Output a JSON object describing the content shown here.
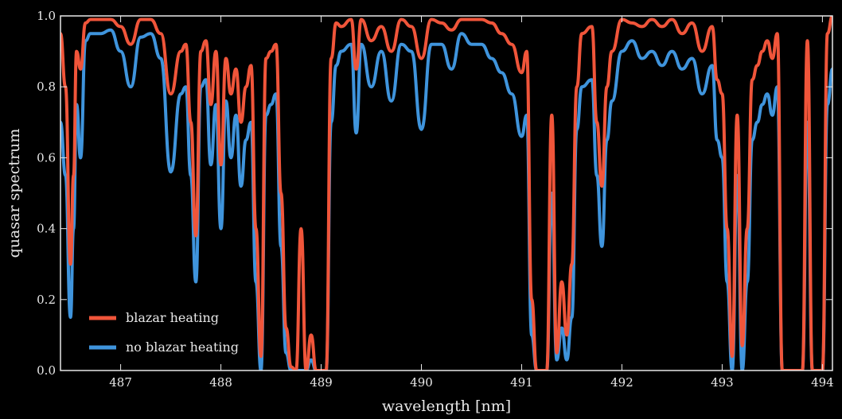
{
  "chart_data": {
    "type": "line",
    "xlabel": "wavelength [nm]",
    "ylabel": "quasar spectrum",
    "xlim": [
      486.4,
      494.1
    ],
    "ylim": [
      0.0,
      1.0
    ],
    "x_ticks": [
      "487",
      "488",
      "489",
      "490",
      "491",
      "492",
      "493",
      "494"
    ],
    "y_ticks": [
      "0.0",
      "0.2",
      "0.4",
      "0.6",
      "0.8",
      "1.0"
    ],
    "grid": false,
    "legend_position": "bottom-left",
    "colors": {
      "background": "#000000",
      "axes": "#e8e8e8",
      "blazar": "#f0553a",
      "no_blazar": "#3f94dc"
    },
    "series": [
      {
        "name": "blazar heating",
        "x": [
          486.4,
          486.45,
          486.5,
          486.53,
          486.56,
          486.6,
          486.65,
          486.7,
          486.8,
          486.9,
          487.0,
          487.1,
          487.2,
          487.3,
          487.4,
          487.5,
          487.6,
          487.65,
          487.7,
          487.75,
          487.8,
          487.85,
          487.9,
          487.95,
          488.0,
          488.05,
          488.1,
          488.15,
          488.2,
          488.25,
          488.3,
          488.35,
          488.4,
          488.45,
          488.5,
          488.55,
          488.6,
          488.65,
          488.7,
          488.75,
          488.8,
          488.85,
          488.9,
          488.95,
          489.0,
          489.05,
          489.1,
          489.15,
          489.2,
          489.3,
          489.35,
          489.4,
          489.5,
          489.6,
          489.7,
          489.8,
          489.9,
          490.0,
          490.1,
          490.2,
          490.3,
          490.4,
          490.5,
          490.6,
          490.7,
          490.8,
          490.9,
          491.0,
          491.05,
          491.1,
          491.15,
          491.2,
          491.25,
          491.3,
          491.35,
          491.4,
          491.45,
          491.5,
          491.55,
          491.6,
          491.7,
          491.75,
          491.8,
          491.85,
          491.9,
          492.0,
          492.1,
          492.2,
          492.3,
          492.4,
          492.5,
          492.6,
          492.7,
          492.8,
          492.9,
          492.95,
          493.0,
          493.05,
          493.1,
          493.15,
          493.2,
          493.25,
          493.3,
          493.35,
          493.4,
          493.45,
          493.5,
          493.55,
          493.6,
          493.65,
          493.7,
          493.75,
          493.8,
          493.85,
          493.9,
          493.95,
          494.0,
          494.05,
          494.1
        ],
        "values": [
          0.95,
          0.8,
          0.3,
          0.55,
          0.9,
          0.85,
          0.98,
          0.99,
          0.99,
          0.99,
          0.97,
          0.92,
          0.99,
          0.99,
          0.95,
          0.78,
          0.9,
          0.92,
          0.7,
          0.38,
          0.9,
          0.93,
          0.75,
          0.9,
          0.58,
          0.88,
          0.78,
          0.85,
          0.7,
          0.8,
          0.86,
          0.4,
          0.04,
          0.88,
          0.9,
          0.92,
          0.5,
          0.12,
          0.01,
          0.0,
          0.4,
          0.0,
          0.1,
          0.0,
          0.0,
          0.0,
          0.88,
          0.98,
          0.97,
          0.99,
          0.85,
          0.99,
          0.93,
          0.97,
          0.9,
          0.99,
          0.97,
          0.88,
          0.99,
          0.98,
          0.96,
          0.99,
          0.99,
          0.99,
          0.98,
          0.95,
          0.92,
          0.84,
          0.9,
          0.2,
          0.0,
          0.0,
          0.0,
          0.72,
          0.05,
          0.25,
          0.1,
          0.3,
          0.8,
          0.95,
          0.97,
          0.7,
          0.52,
          0.8,
          0.9,
          0.99,
          0.98,
          0.97,
          0.99,
          0.97,
          0.99,
          0.95,
          0.98,
          0.9,
          0.97,
          0.82,
          0.78,
          0.4,
          0.04,
          0.72,
          0.07,
          0.4,
          0.82,
          0.86,
          0.9,
          0.93,
          0.88,
          0.95,
          0.0,
          0.0,
          0.0,
          0.0,
          0.0,
          0.93,
          0.0,
          0.0,
          0.0,
          0.95,
          1.0
        ]
      },
      {
        "name": "no blazar heating",
        "x": [
          486.4,
          486.45,
          486.5,
          486.53,
          486.56,
          486.6,
          486.65,
          486.7,
          486.8,
          486.9,
          487.0,
          487.1,
          487.2,
          487.3,
          487.4,
          487.5,
          487.6,
          487.65,
          487.7,
          487.75,
          487.8,
          487.85,
          487.9,
          487.95,
          488.0,
          488.05,
          488.1,
          488.15,
          488.2,
          488.25,
          488.3,
          488.35,
          488.4,
          488.45,
          488.5,
          488.55,
          488.6,
          488.65,
          488.7,
          488.75,
          488.8,
          488.85,
          488.9,
          488.95,
          489.0,
          489.05,
          489.1,
          489.15,
          489.2,
          489.3,
          489.35,
          489.4,
          489.5,
          489.6,
          489.7,
          489.8,
          489.9,
          490.0,
          490.1,
          490.2,
          490.3,
          490.4,
          490.5,
          490.6,
          490.7,
          490.8,
          490.9,
          491.0,
          491.05,
          491.1,
          491.15,
          491.2,
          491.25,
          491.3,
          491.35,
          491.4,
          491.45,
          491.5,
          491.55,
          491.6,
          491.7,
          491.75,
          491.8,
          491.85,
          491.9,
          492.0,
          492.1,
          492.2,
          492.3,
          492.4,
          492.5,
          492.6,
          492.7,
          492.8,
          492.9,
          492.95,
          493.0,
          493.05,
          493.1,
          493.15,
          493.2,
          493.25,
          493.3,
          493.35,
          493.4,
          493.45,
          493.5,
          493.55,
          493.6,
          493.65,
          493.7,
          493.75,
          493.8,
          493.85,
          493.9,
          493.95,
          494.0,
          494.05,
          494.1
        ],
        "values": [
          0.7,
          0.55,
          0.15,
          0.4,
          0.75,
          0.6,
          0.93,
          0.95,
          0.95,
          0.96,
          0.9,
          0.8,
          0.94,
          0.95,
          0.88,
          0.56,
          0.78,
          0.8,
          0.55,
          0.25,
          0.8,
          0.82,
          0.58,
          0.75,
          0.4,
          0.76,
          0.6,
          0.72,
          0.52,
          0.65,
          0.7,
          0.25,
          0.0,
          0.72,
          0.75,
          0.78,
          0.35,
          0.05,
          0.0,
          0.0,
          0.0,
          0.0,
          0.03,
          0.0,
          0.0,
          0.0,
          0.7,
          0.86,
          0.9,
          0.92,
          0.67,
          0.92,
          0.8,
          0.9,
          0.76,
          0.92,
          0.9,
          0.68,
          0.92,
          0.92,
          0.85,
          0.95,
          0.92,
          0.92,
          0.88,
          0.84,
          0.78,
          0.66,
          0.72,
          0.1,
          0.0,
          0.0,
          0.0,
          0.5,
          0.03,
          0.12,
          0.03,
          0.15,
          0.68,
          0.8,
          0.82,
          0.55,
          0.35,
          0.65,
          0.76,
          0.9,
          0.93,
          0.88,
          0.9,
          0.86,
          0.9,
          0.85,
          0.88,
          0.78,
          0.86,
          0.65,
          0.6,
          0.25,
          0.0,
          0.55,
          0.0,
          0.25,
          0.65,
          0.7,
          0.75,
          0.78,
          0.72,
          0.8,
          0.0,
          0.0,
          0.0,
          0.0,
          0.0,
          0.7,
          0.0,
          0.0,
          0.0,
          0.75,
          0.85
        ]
      }
    ]
  }
}
